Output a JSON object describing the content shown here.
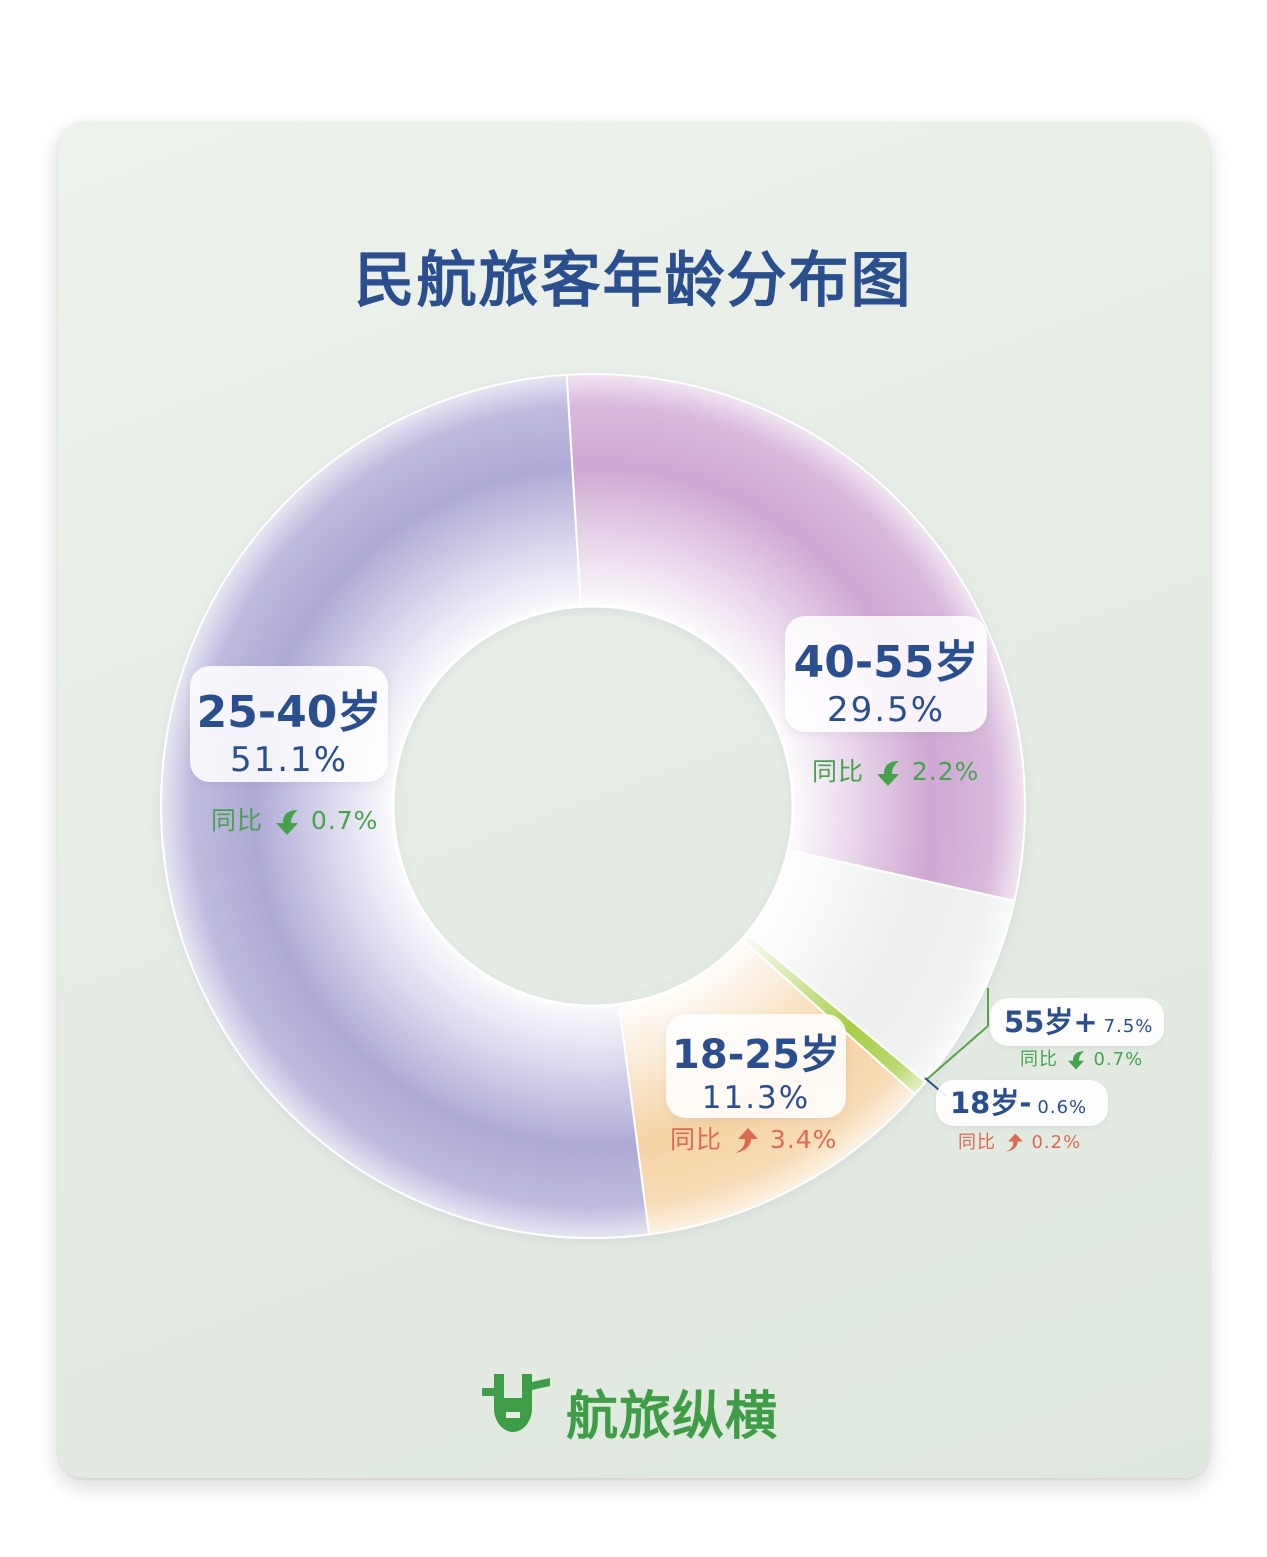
{
  "title": "民航旅客年龄分布图",
  "chart_data": {
    "type": "pie",
    "title": "民航旅客年龄分布图",
    "yoy_prefix": "同比",
    "slices": [
      {
        "label": "40-55岁",
        "value": 29.5,
        "value_text": "29.5%",
        "yoy": "2.2%",
        "yoy_dir": "down",
        "color": "#cfa8d3"
      },
      {
        "label": "55岁+",
        "value": 7.5,
        "value_text": "7.5%",
        "yoy": "0.7%",
        "yoy_dir": "down",
        "color": "#ecefee"
      },
      {
        "label": "18岁-",
        "value": 0.6,
        "value_text": "0.6%",
        "yoy": "0.2%",
        "yoy_dir": "up",
        "color": "#a8cf4a"
      },
      {
        "label": "18-25岁",
        "value": 11.3,
        "value_text": "11.3%",
        "yoy": "3.4%",
        "yoy_dir": "up",
        "color": "#f5d3a4"
      },
      {
        "label": "25-40岁",
        "value": 51.1,
        "value_text": "51.1%",
        "yoy": "0.7%",
        "yoy_dir": "down",
        "color": "#aeaad6"
      }
    ]
  },
  "colors": {
    "title": "#2b4f8e",
    "down": "#47a24e",
    "up": "#dc6a52",
    "brand": "#3f9c47"
  },
  "brand": {
    "name": "航旅纵横"
  }
}
